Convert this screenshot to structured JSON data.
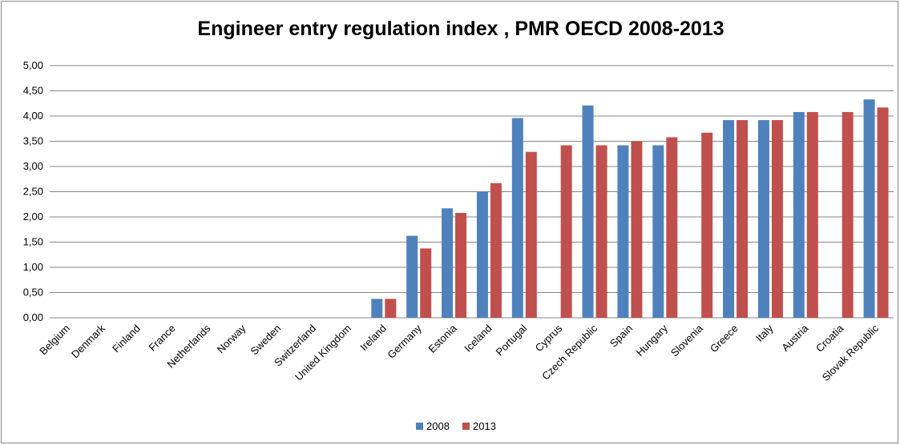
{
  "chart_data": {
    "type": "bar",
    "title": "Engineer entry regulation index , PMR OECD 2008-2013",
    "categories": [
      "Belgium",
      "Denmark",
      "Finland",
      "France",
      "Netherlands",
      "Norway",
      "Sweden",
      "Switzerland",
      "United Kingdom",
      "Ireland",
      "Germany",
      "Estonia",
      "Iceland",
      "Portugal",
      "Cyprus",
      "Czech Republic",
      "Spain",
      "Hungary",
      "Slovenia",
      "Greece",
      "Italy",
      "Austria",
      "Croatia",
      "Slovak Republic"
    ],
    "series": [
      {
        "name": "2008",
        "color": "#4f81bd",
        "values": [
          0,
          0,
          0,
          0,
          0,
          0,
          0,
          0,
          0,
          0.375,
          1.625,
          2.17,
          2.5,
          3.96,
          null,
          4.21,
          3.42,
          3.42,
          null,
          3.92,
          3.92,
          4.08,
          null,
          4.33
        ]
      },
      {
        "name": "2013",
        "color": "#c0504d",
        "values": [
          0,
          0,
          0,
          0,
          0,
          0,
          0,
          0,
          0,
          0.375,
          1.375,
          2.08,
          2.67,
          3.29,
          3.42,
          3.42,
          3.5,
          3.58,
          3.67,
          3.92,
          3.92,
          4.08,
          4.08,
          4.17
        ]
      }
    ],
    "ylim": [
      0,
      5
    ],
    "yticks": [
      {
        "value": 0,
        "label": "0,00"
      },
      {
        "value": 0.5,
        "label": "0,50"
      },
      {
        "value": 1,
        "label": "1,00"
      },
      {
        "value": 1.5,
        "label": "1,50"
      },
      {
        "value": 2,
        "label": "2,00"
      },
      {
        "value": 2.5,
        "label": "2,50"
      },
      {
        "value": 3,
        "label": "3,00"
      },
      {
        "value": 3.5,
        "label": "3,50"
      },
      {
        "value": 4,
        "label": "4,00"
      },
      {
        "value": 4.5,
        "label": "4,50"
      },
      {
        "value": 5,
        "label": "5,00"
      }
    ],
    "grid": true,
    "legend": "bottom"
  }
}
